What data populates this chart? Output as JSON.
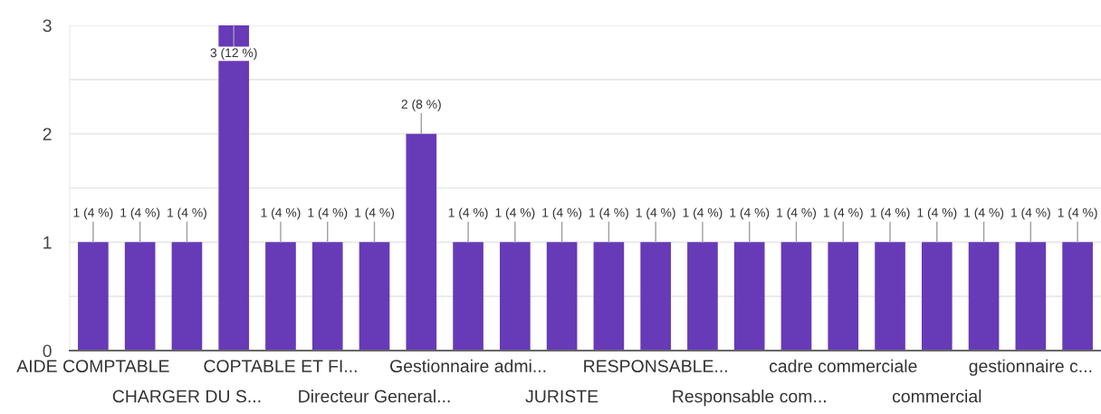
{
  "chart_data": {
    "type": "bar",
    "categories": [
      "AIDE COMPTABLE",
      null,
      "CHARGER DU S...",
      null,
      "COPTABLE ET FI...",
      null,
      "Directeur General...",
      null,
      "Gestionnaire admi...",
      null,
      "JURISTE",
      null,
      "RESPONSABLE...",
      null,
      "Responsable com...",
      null,
      "cadre commerciale",
      null,
      "commercial",
      null,
      "gestionnaire c...",
      null
    ],
    "values": [
      1,
      1,
      1,
      3,
      1,
      1,
      1,
      2,
      1,
      1,
      1,
      1,
      1,
      1,
      1,
      1,
      1,
      1,
      1,
      1,
      1,
      1
    ],
    "value_labels": [
      "1 (4 %)",
      "1 (4 %)",
      "1 (4 %)",
      "3 (12 %)",
      "1 (4 %)",
      "1 (4 %)",
      "1 (4 %)",
      "2 (8 %)",
      "1 (4 %)",
      "1 (4 %)",
      "1 (4 %)",
      "1 (4 %)",
      "1 (4 %)",
      "1 (4 %)",
      "1 (4 %)",
      "1 (4 %)",
      "1 (4 %)",
      "1 (4 %)",
      "1 (4 %)",
      "1 (4 %)",
      "1 (4 %)",
      "1 (4 %)"
    ],
    "color": "#673ab7",
    "ylim": [
      0,
      3
    ],
    "yticks": [
      0,
      {
        "value": 0.5,
        "label": null
      },
      1,
      {
        "value": 1.5,
        "label": null
      },
      2,
      {
        "value": 2.5,
        "label": null
      },
      3
    ],
    "grid": "y"
  }
}
